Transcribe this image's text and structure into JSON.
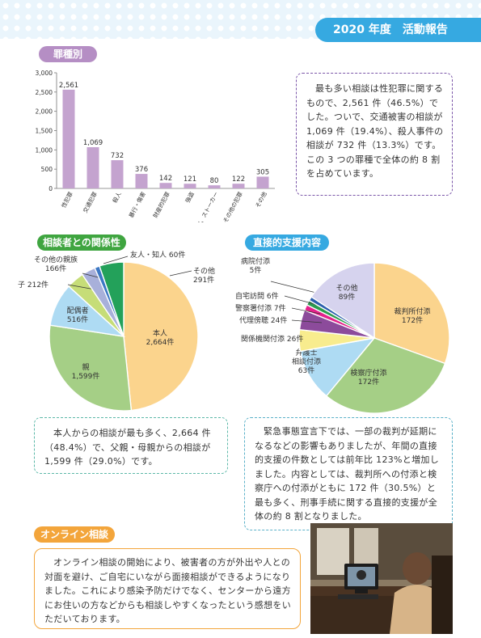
{
  "header": {
    "year": "2020 年度",
    "title": "活動報告"
  },
  "crime": {
    "heading": "罪種別",
    "text": "最も多い相談は性犯罪に関するもので、2,561 件（46.5%）でした。ついで、交通被害の相談が 1,069 件（19.4%）、殺人事件の相談が 732 件（13.3%）です。この 3 つの罪種で全体の約 8 割を占めています。",
    "chart_data": {
      "type": "bar",
      "categories": [
        "性犯罪",
        "交通犯罪",
        "殺人",
        "暴行・傷害",
        "財産的犯罪",
        "強盗",
        "虐待、DV、ストーカー",
        "その他の犯罪",
        "その他"
      ],
      "values": [
        2561,
        1069,
        732,
        376,
        142,
        121,
        80,
        122,
        305
      ],
      "value_labels": [
        "2,561",
        "1,069",
        "732",
        "376",
        "142",
        "121",
        "80",
        "122",
        "305"
      ],
      "ylim": [
        0,
        3000
      ],
      "yticks": [
        "0",
        "500",
        "1,000",
        "1,500",
        "2,000",
        "2,500",
        "3,000"
      ],
      "color": "#c4a3cf",
      "grid": false
    }
  },
  "relation": {
    "heading": "相談者との関係性",
    "text": "本人からの相談が最も多く、2,664 件（48.4%）で、父親・母親からの相談が 1,599 件（29.0%）です。",
    "chart_data": {
      "type": "pie",
      "slices": [
        {
          "name": "本人",
          "value": 2664,
          "label": "2,664件",
          "color": "#fbd48d"
        },
        {
          "name": "親",
          "value": 1599,
          "label": "1,599件",
          "color": "#a5cf86"
        },
        {
          "name": "配偶者",
          "value": 516,
          "label": "516件",
          "color": "#aedbf3"
        },
        {
          "name": "子",
          "value": 212,
          "label": "212件",
          "color": "#c6dd78"
        },
        {
          "name": "その他の親族",
          "value": 166,
          "label": "166件",
          "color": "#a8b0da"
        },
        {
          "name": "友人・知人",
          "value": 60,
          "label": "60件",
          "color": "#3c78c4"
        },
        {
          "name": "その他",
          "value": 291,
          "label": "291件",
          "color": "#23a15a"
        }
      ]
    }
  },
  "support": {
    "heading": "直接的支援内容",
    "text": "緊急事態宣言下では、一部の裁判が延期になるなどの影響もありましたが、年間の直接的支援の件数としては前年比 123%と増加しました。内容としては、裁判所への付添と検察庁への付添がともに 172 件（30.5%）と最も多く、刑事手続に関する直接的支援が全体の約 8 割となりました。",
    "chart_data": {
      "type": "pie",
      "slices": [
        {
          "name": "裁判所付添",
          "value": 172,
          "label": "172件",
          "color": "#fbd48d"
        },
        {
          "name": "検察庁付添",
          "value": 172,
          "label": "172件",
          "color": "#a5cf86"
        },
        {
          "name": "弁護士相談付添",
          "value": 63,
          "label": "63件",
          "color": "#aedbf3"
        },
        {
          "name": "関係機関付添",
          "value": 26,
          "label": "26件",
          "color": "#f8ec8e"
        },
        {
          "name": "代理傍聴",
          "value": 24,
          "label": "24件",
          "color": "#8c4b9b"
        },
        {
          "name": "警察署付添",
          "value": 7,
          "label": "7件",
          "color": "#e4218b"
        },
        {
          "name": "自宅訪問",
          "value": 6,
          "label": "6件",
          "color": "#2c9b4f"
        },
        {
          "name": "病院付添",
          "value": 5,
          "label": "5件",
          "color": "#2b5fad"
        },
        {
          "name": "その他",
          "value": 89,
          "label": "89件",
          "color": "#d6d3ee"
        }
      ]
    }
  },
  "online": {
    "heading": "オンライン相談",
    "text": "オンライン相談の開始により、被害者の方が外出や人との対面を避け、ご自宅にいながら面接相談ができるようになりました。これにより感染予防だけでなく、センターから遠方にお住いの方などからも相談しやすくなったという感想をいただいております。"
  },
  "colors": {
    "banner": "#36a9e1",
    "crime_pill": "#b58ec4",
    "relation_pill": "#3fa540",
    "support_pill": "#36a9e1",
    "online_pill": "#f3a53b"
  }
}
